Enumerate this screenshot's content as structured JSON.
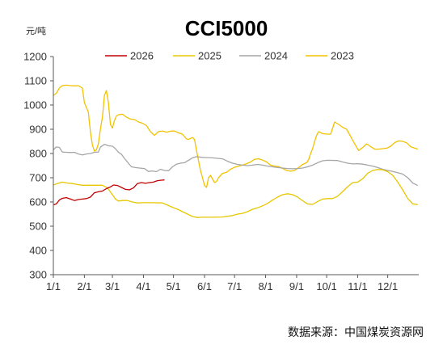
{
  "chart_data": {
    "type": "line",
    "title": "CCI5000",
    "unit": "元/吨",
    "ylim": [
      300,
      1200
    ],
    "y_ticks": [
      300,
      400,
      500,
      600,
      700,
      800,
      900,
      1000,
      1100,
      1200
    ],
    "x_ticks": [
      "1/1",
      "2/1",
      "3/1",
      "4/1",
      "5/1",
      "6/1",
      "7/1",
      "8/1",
      "9/1",
      "10/1",
      "11/1",
      "12/1"
    ],
    "x_tick_day_of_year": [
      1,
      32,
      60,
      91,
      121,
      152,
      182,
      213,
      244,
      274,
      305,
      335
    ],
    "x_max_day": 366,
    "grid": false,
    "legend_position": "top",
    "source": "数据来源：中国煤炭资源网",
    "series": [
      {
        "name": "2026",
        "color": "#c00000",
        "points": [
          [
            1,
            588
          ],
          [
            4,
            592
          ],
          [
            7,
            608
          ],
          [
            10,
            615
          ],
          [
            14,
            618
          ],
          [
            18,
            612
          ],
          [
            22,
            606
          ],
          [
            26,
            610
          ],
          [
            30,
            612
          ],
          [
            34,
            614
          ],
          [
            38,
            620
          ],
          [
            42,
            638
          ],
          [
            46,
            642
          ],
          [
            50,
            645
          ],
          [
            54,
            655
          ],
          [
            58,
            662
          ],
          [
            61,
            670
          ],
          [
            65,
            668
          ],
          [
            69,
            660
          ],
          [
            73,
            652
          ],
          [
            77,
            650
          ],
          [
            81,
            658
          ],
          [
            85,
            676
          ],
          [
            89,
            680
          ],
          [
            93,
            677
          ],
          [
            97,
            680
          ],
          [
            101,
            682
          ],
          [
            105,
            688
          ],
          [
            109,
            690
          ],
          [
            112,
            691
          ]
        ]
      },
      {
        "name": "2025",
        "color": "#e6c700",
        "points": [
          [
            1,
            670
          ],
          [
            5,
            676
          ],
          [
            10,
            682
          ],
          [
            15,
            678
          ],
          [
            20,
            676
          ],
          [
            25,
            672
          ],
          [
            30,
            669
          ],
          [
            40,
            669
          ],
          [
            50,
            669
          ],
          [
            55,
            658
          ],
          [
            60,
            630
          ],
          [
            63,
            612
          ],
          [
            66,
            604
          ],
          [
            70,
            606
          ],
          [
            75,
            606
          ],
          [
            80,
            600
          ],
          [
            85,
            596
          ],
          [
            90,
            597
          ],
          [
            100,
            597
          ],
          [
            110,
            596
          ],
          [
            115,
            587
          ],
          [
            120,
            578
          ],
          [
            125,
            570
          ],
          [
            130,
            560
          ],
          [
            135,
            550
          ],
          [
            140,
            540
          ],
          [
            145,
            536
          ],
          [
            150,
            537
          ],
          [
            160,
            537
          ],
          [
            170,
            538
          ],
          [
            180,
            544
          ],
          [
            185,
            550
          ],
          [
            190,
            553
          ],
          [
            195,
            560
          ],
          [
            200,
            570
          ],
          [
            205,
            576
          ],
          [
            210,
            584
          ],
          [
            215,
            594
          ],
          [
            220,
            608
          ],
          [
            225,
            620
          ],
          [
            230,
            630
          ],
          [
            235,
            634
          ],
          [
            240,
            630
          ],
          [
            245,
            620
          ],
          [
            250,
            605
          ],
          [
            255,
            592
          ],
          [
            260,
            590
          ],
          [
            265,
            602
          ],
          [
            270,
            612
          ],
          [
            275,
            614
          ],
          [
            280,
            614
          ],
          [
            285,
            624
          ],
          [
            290,
            643
          ],
          [
            295,
            663
          ],
          [
            300,
            680
          ],
          [
            305,
            682
          ],
          [
            310,
            696
          ],
          [
            315,
            718
          ],
          [
            320,
            730
          ],
          [
            325,
            734
          ],
          [
            330,
            733
          ],
          [
            335,
            725
          ],
          [
            340,
            710
          ],
          [
            345,
            682
          ],
          [
            350,
            650
          ],
          [
            355,
            614
          ],
          [
            360,
            592
          ],
          [
            365,
            589
          ]
        ]
      },
      {
        "name": "2024",
        "color": "#a6a6a6",
        "points": [
          [
            1,
            815
          ],
          [
            4,
            827
          ],
          [
            7,
            825
          ],
          [
            10,
            806
          ],
          [
            14,
            805
          ],
          [
            18,
            804
          ],
          [
            22,
            805
          ],
          [
            26,
            798
          ],
          [
            30,
            794
          ],
          [
            34,
            798
          ],
          [
            38,
            800
          ],
          [
            42,
            805
          ],
          [
            46,
            806
          ],
          [
            48,
            826
          ],
          [
            52,
            838
          ],
          [
            56,
            832
          ],
          [
            60,
            830
          ],
          [
            63,
            820
          ],
          [
            66,
            805
          ],
          [
            69,
            797
          ],
          [
            72,
            780
          ],
          [
            75,
            765
          ],
          [
            79,
            745
          ],
          [
            83,
            742
          ],
          [
            87,
            740
          ],
          [
            92,
            738
          ],
          [
            96,
            726
          ],
          [
            100,
            728
          ],
          [
            104,
            725
          ],
          [
            108,
            735
          ],
          [
            112,
            730
          ],
          [
            116,
            729
          ],
          [
            120,
            745
          ],
          [
            124,
            756
          ],
          [
            128,
            760
          ],
          [
            132,
            762
          ],
          [
            136,
            772
          ],
          [
            140,
            782
          ],
          [
            144,
            787
          ],
          [
            150,
            784
          ],
          [
            155,
            783
          ],
          [
            160,
            782
          ],
          [
            165,
            780
          ],
          [
            170,
            778
          ],
          [
            175,
            768
          ],
          [
            180,
            760
          ],
          [
            185,
            755
          ],
          [
            190,
            752
          ],
          [
            195,
            750
          ],
          [
            200,
            752
          ],
          [
            205,
            755
          ],
          [
            210,
            752
          ],
          [
            215,
            748
          ],
          [
            220,
            745
          ],
          [
            225,
            742
          ],
          [
            230,
            740
          ],
          [
            235,
            738
          ],
          [
            240,
            737
          ],
          [
            245,
            738
          ],
          [
            250,
            740
          ],
          [
            255,
            745
          ],
          [
            260,
            752
          ],
          [
            265,
            762
          ],
          [
            270,
            770
          ],
          [
            275,
            772
          ],
          [
            285,
            771
          ],
          [
            290,
            765
          ],
          [
            295,
            760
          ],
          [
            300,
            757
          ],
          [
            305,
            758
          ],
          [
            310,
            756
          ],
          [
            315,
            752
          ],
          [
            320,
            748
          ],
          [
            325,
            742
          ],
          [
            330,
            735
          ],
          [
            335,
            730
          ],
          [
            340,
            726
          ],
          [
            345,
            721
          ],
          [
            350,
            715
          ],
          [
            355,
            700
          ],
          [
            360,
            678
          ],
          [
            365,
            668
          ]
        ]
      },
      {
        "name": "2023",
        "color": "#f2c200",
        "points": [
          [
            1,
            1040
          ],
          [
            4,
            1048
          ],
          [
            7,
            1070
          ],
          [
            10,
            1080
          ],
          [
            14,
            1082
          ],
          [
            18,
            1080
          ],
          [
            22,
            1079
          ],
          [
            26,
            1080
          ],
          [
            30,
            1070
          ],
          [
            32,
            1010
          ],
          [
            34,
            990
          ],
          [
            36,
            970
          ],
          [
            38,
            890
          ],
          [
            40,
            835
          ],
          [
            42,
            810
          ],
          [
            44,
            815
          ],
          [
            46,
            840
          ],
          [
            48,
            900
          ],
          [
            50,
            950
          ],
          [
            52,
            1040
          ],
          [
            54,
            1060
          ],
          [
            56,
            1010
          ],
          [
            58,
            920
          ],
          [
            60,
            905
          ],
          [
            62,
            935
          ],
          [
            64,
            955
          ],
          [
            66,
            960
          ],
          [
            70,
            962
          ],
          [
            74,
            950
          ],
          [
            78,
            942
          ],
          [
            82,
            940
          ],
          [
            86,
            930
          ],
          [
            90,
            925
          ],
          [
            94,
            915
          ],
          [
            98,
            890
          ],
          [
            102,
            875
          ],
          [
            106,
            890
          ],
          [
            110,
            893
          ],
          [
            114,
            888
          ],
          [
            118,
            892
          ],
          [
            122,
            893
          ],
          [
            126,
            885
          ],
          [
            130,
            880
          ],
          [
            134,
            860
          ],
          [
            136,
            858
          ],
          [
            140,
            866
          ],
          [
            142,
            858
          ],
          [
            144,
            812
          ],
          [
            146,
            770
          ],
          [
            148,
            730
          ],
          [
            150,
            700
          ],
          [
            152,
            668
          ],
          [
            154,
            660
          ],
          [
            156,
            700
          ],
          [
            158,
            710
          ],
          [
            160,
            695
          ],
          [
            162,
            680
          ],
          [
            164,
            685
          ],
          [
            166,
            700
          ],
          [
            170,
            718
          ],
          [
            174,
            722
          ],
          [
            178,
            735
          ],
          [
            182,
            743
          ],
          [
            186,
            748
          ],
          [
            190,
            752
          ],
          [
            194,
            758
          ],
          [
            198,
            765
          ],
          [
            202,
            776
          ],
          [
            206,
            778
          ],
          [
            210,
            773
          ],
          [
            214,
            765
          ],
          [
            218,
            752
          ],
          [
            222,
            748
          ],
          [
            226,
            746
          ],
          [
            230,
            738
          ],
          [
            234,
            730
          ],
          [
            238,
            727
          ],
          [
            242,
            730
          ],
          [
            246,
            742
          ],
          [
            250,
            755
          ],
          [
            254,
            762
          ],
          [
            256,
            775
          ],
          [
            258,
            800
          ],
          [
            260,
            820
          ],
          [
            262,
            850
          ],
          [
            264,
            875
          ],
          [
            266,
            890
          ],
          [
            270,
            882
          ],
          [
            274,
            880
          ],
          [
            278,
            880
          ],
          [
            280,
            905
          ],
          [
            282,
            930
          ],
          [
            286,
            920
          ],
          [
            290,
            908
          ],
          [
            294,
            900
          ],
          [
            298,
            870
          ],
          [
            302,
            840
          ],
          [
            306,
            812
          ],
          [
            310,
            825
          ],
          [
            314,
            840
          ],
          [
            318,
            828
          ],
          [
            322,
            818
          ],
          [
            326,
            818
          ],
          [
            330,
            820
          ],
          [
            334,
            822
          ],
          [
            338,
            830
          ],
          [
            342,
            845
          ],
          [
            346,
            852
          ],
          [
            350,
            850
          ],
          [
            354,
            844
          ],
          [
            358,
            828
          ],
          [
            362,
            822
          ],
          [
            365,
            818
          ]
        ]
      }
    ]
  }
}
